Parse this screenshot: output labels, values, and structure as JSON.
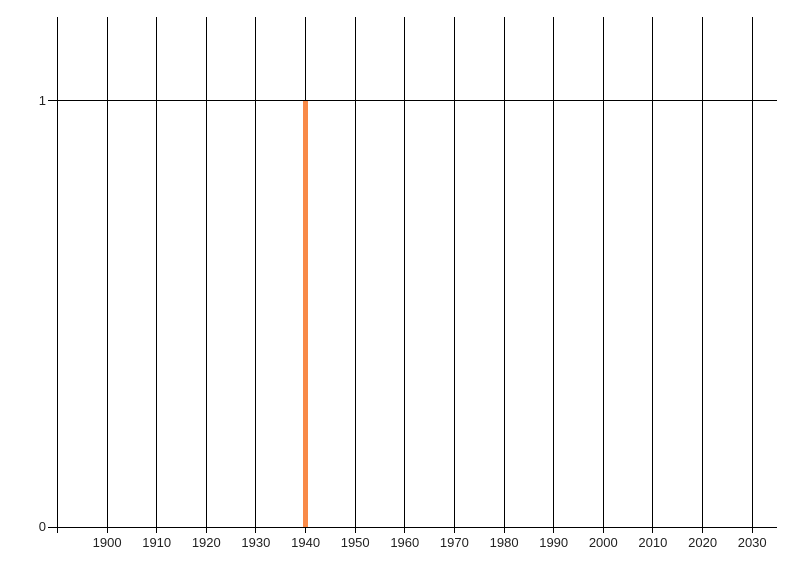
{
  "chart_data": {
    "type": "bar",
    "title": "",
    "xlabel": "",
    "ylabel": "",
    "grid": true,
    "legend": false,
    "xlim": [
      1888.5,
      2035
    ],
    "ylim": [
      0,
      1.2
    ],
    "x_gridline_years": [
      1890,
      1900,
      1910,
      1920,
      1930,
      1940,
      1950,
      1960,
      1970,
      1980,
      1990,
      2000,
      2010,
      2020,
      2030
    ],
    "x_tick_labels": [
      "1900",
      "1910",
      "1920",
      "1930",
      "1940",
      "1950",
      "1960",
      "1970",
      "1980",
      "1990",
      "2000",
      "2010",
      "2020",
      "2030"
    ],
    "y_ticks": [
      {
        "value": 0,
        "label": "0"
      },
      {
        "value": 1,
        "label": "1"
      }
    ],
    "series": [
      {
        "color": "#f98a48",
        "data": [
          {
            "x": 1940,
            "y": 1
          }
        ]
      }
    ]
  },
  "colors": {
    "background": "#ffffff",
    "gridline": "#000000",
    "axis": "#000000",
    "bar": "#f98a48",
    "label": "#222222"
  }
}
